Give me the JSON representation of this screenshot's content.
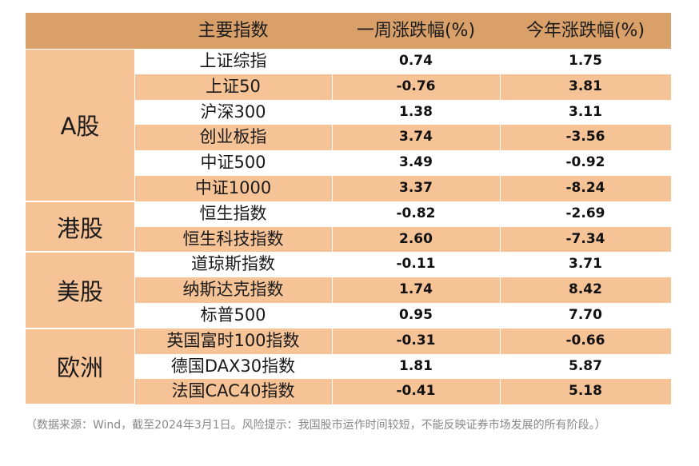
{
  "header": {
    "col1": "主要指数",
    "col2": "一周涨跌幅(%)",
    "col3": "今年涨跌幅(%)"
  },
  "regions": [
    {
      "name": "A股",
      "rows": [
        {
          "name": "上证综指",
          "week": "0.74",
          "ytd": "1.75"
        },
        {
          "name": "上证50",
          "week": "-0.76",
          "ytd": "3.81"
        },
        {
          "name": "沪深300",
          "week": "1.38",
          "ytd": "3.11"
        },
        {
          "name": "创业板指",
          "week": "3.74",
          "ytd": "-3.56"
        },
        {
          "name": "中证500",
          "week": "3.49",
          "ytd": "-0.92"
        },
        {
          "name": "中证1000",
          "week": "3.37",
          "ytd": "-8.24"
        }
      ]
    },
    {
      "name": "港股",
      "rows": [
        {
          "name": "恒生指数",
          "week": "-0.82",
          "ytd": "-2.69"
        },
        {
          "name": "恒生科技指数",
          "week": "2.60",
          "ytd": "-7.34"
        }
      ]
    },
    {
      "name": "美股",
      "rows": [
        {
          "name": "道琼斯指数",
          "week": "-0.11",
          "ytd": "3.71"
        },
        {
          "name": "纳斯达克指数",
          "week": "1.74",
          "ytd": "8.42"
        },
        {
          "name": "标普500",
          "week": "0.95",
          "ytd": "7.70"
        }
      ]
    },
    {
      "name": "欧洲",
      "rows": [
        {
          "name": "英国富时100指数",
          "week": "-0.31",
          "ytd": "-0.66"
        },
        {
          "name": "德国DAX30指数",
          "week": "1.81",
          "ytd": "5.87"
        },
        {
          "name": "法国CAC40指数",
          "week": "-0.41",
          "ytd": "5.18"
        }
      ]
    }
  ],
  "source_note": "（数据来源：Wind，截至2024年3月1日。风险提示：我国股市运作时间较短，不能反映证券市场发展的所有阶段。）"
}
